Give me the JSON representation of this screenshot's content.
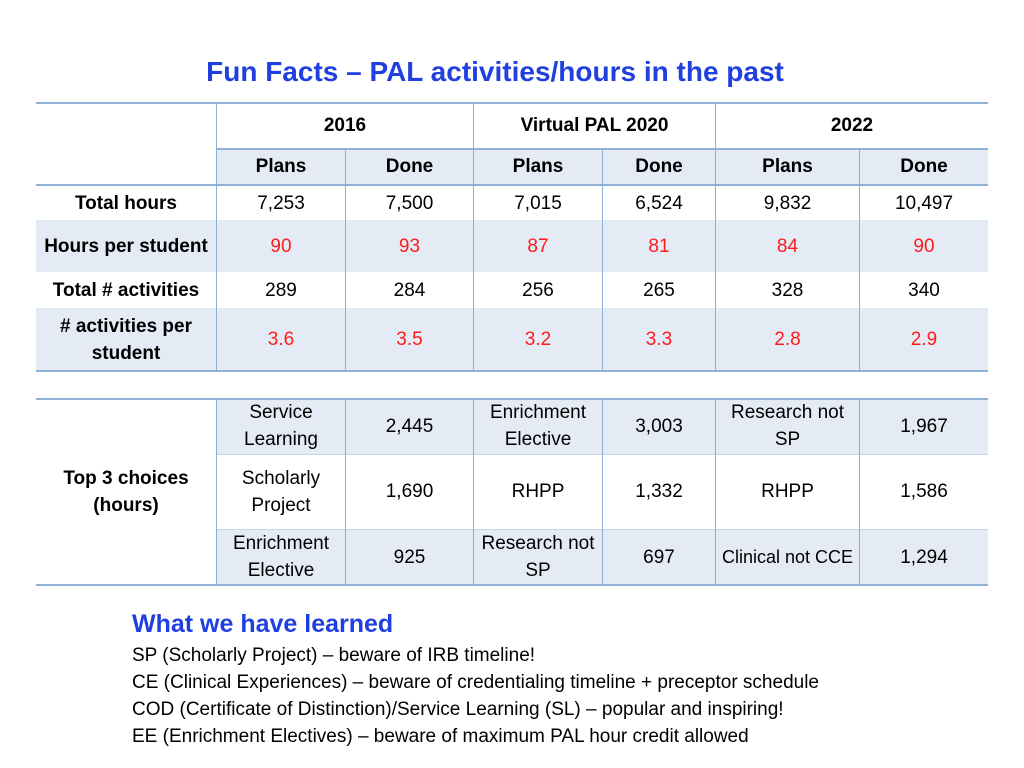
{
  "title": "Fun Facts – PAL activities/hours in the past",
  "summary_table": {
    "years": [
      "2016",
      "Virtual PAL 2020",
      "2022"
    ],
    "subheaders": [
      "Plans",
      "Done",
      "Plans",
      "Done",
      "Plans",
      "Done"
    ],
    "rows": [
      {
        "label": "Total hours",
        "values": [
          "7,253",
          "7,500",
          "7,015",
          "6,524",
          "9,832",
          "10,497"
        ]
      },
      {
        "label": "Hours per student",
        "values": [
          "90",
          "93",
          "87",
          "81",
          "84",
          "90"
        ]
      },
      {
        "label": "Total # activities",
        "values": [
          "289",
          "284",
          "256",
          "265",
          "328",
          "340"
        ]
      },
      {
        "label": "# activities per student",
        "values": [
          "3.6",
          "3.5",
          "3.2",
          "3.3",
          "2.8",
          "2.9"
        ]
      }
    ],
    "colors": {
      "header_line": "#8fb1d9",
      "band": "#e4ebf5",
      "highlight": "#ff1a1a"
    }
  },
  "top_choices": {
    "label": "Top 3 choices (hours)",
    "rows": [
      [
        "Service Learning",
        "2,445",
        "Enrichment Elective",
        "3,003",
        "Research not SP",
        "1,967"
      ],
      [
        "Scholarly Project",
        "1,690",
        "RHPP",
        "1,332",
        "RHPP",
        "1,586"
      ],
      [
        "Enrichment Elective",
        "925",
        "Research not SP",
        "697",
        "Clinical not CCE",
        "1,294"
      ]
    ]
  },
  "learned": {
    "heading": "What we have learned",
    "lines": [
      "SP (Scholarly Project) – beware of IRB timeline!",
      "CE (Clinical Experiences) – beware of credentialing timeline + preceptor schedule",
      "COD (Certificate of Distinction)/Service Learning (SL) – popular and inspiring!",
      "EE (Enrichment Electives) – beware of maximum PAL hour credit allowed"
    ]
  }
}
